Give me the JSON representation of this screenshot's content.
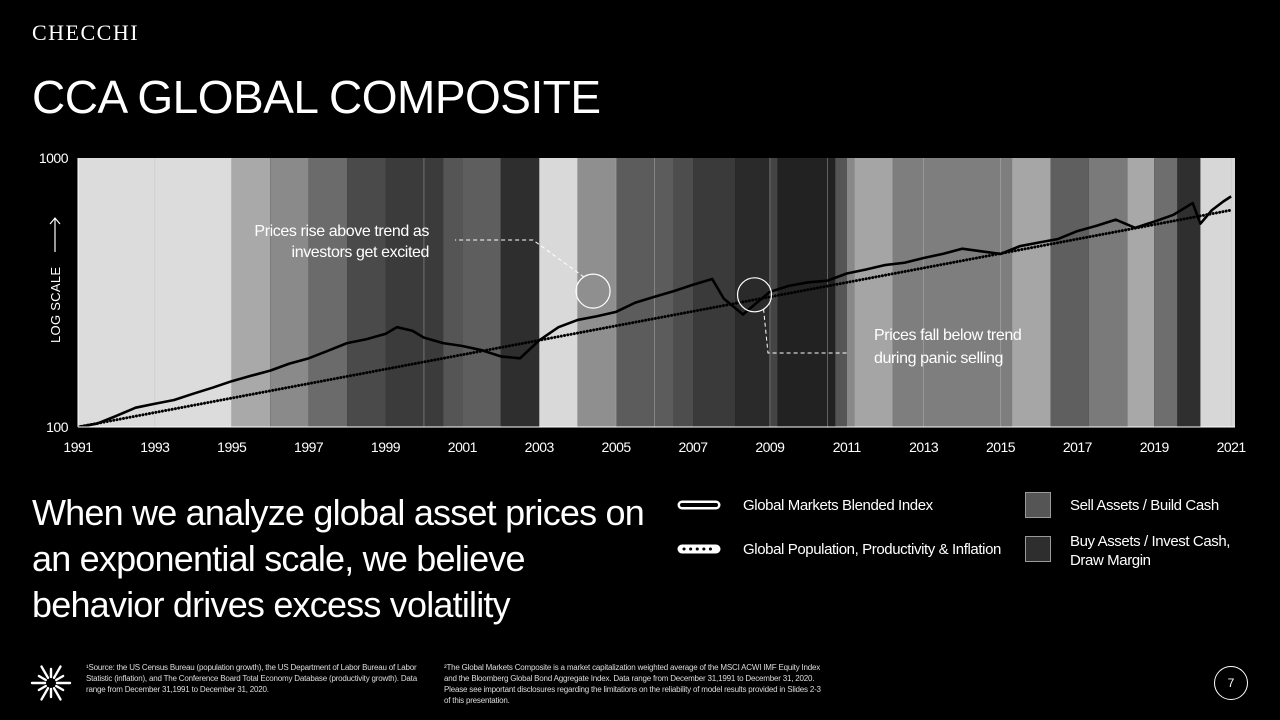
{
  "brand": "CHECCHI",
  "title": "CCA GLOBAL COMPOSITE",
  "tagline": "When we analyze global asset prices on an exponential scale, we believe behavior drives excess volatility",
  "legend": {
    "line_index": "Global Markets Blended Index",
    "line_trend": "Global Population, Productivity & Inflation",
    "sell": "Sell Assets / Build Cash",
    "buy": "Buy Assets / Invest Cash, Draw Margin"
  },
  "footnote1": "¹Source: the US Census Bureau (population growth), the US Department of Labor Bureau of Labor Statistic (inflation), and The Conference Board Total Economy Database (productivity growth). Data range from December 31,1991 to December 31, 2020.",
  "footnote2": "²The Global Markets Composite is a market capitalization weighted average of the MSCI ACWI IMF Equity Index and the Bloomberg Global Bond Aggregate Index. Data range from December 31,1991 to December 31, 2020. Please see important disclosures regarding the limitations on the reliability of model results provided in Slides 2-3 of this presentation.",
  "page_number": "7",
  "icons": {
    "logo": "sunburst-logo-icon",
    "arrow": "arrow-right-icon"
  },
  "colors": {
    "background": "#000000",
    "text": "#ffffff",
    "sell_swatch": "#555555",
    "buy_swatch": "#2e2e2e"
  },
  "chart_data": {
    "type": "line",
    "scale": "log",
    "ylim": [
      100,
      1000
    ],
    "xlim": [
      1991,
      2021.1
    ],
    "ylabel": "LOG SCALE",
    "y_ticks": [
      "100",
      "1000"
    ],
    "x_ticks": [
      "1991",
      "1993",
      "1995",
      "1997",
      "1999",
      "2001",
      "2003",
      "2005",
      "2007",
      "2009",
      "2011",
      "2013",
      "2015",
      "2017",
      "2019",
      "2021"
    ],
    "annotations": [
      {
        "text": "Prices rise above trend as investors get excited",
        "x": 2004.4,
        "y": 320
      },
      {
        "text": "Prices fall below trend during panic selling",
        "x": 2008.6,
        "y": 310
      }
    ],
    "series": [
      {
        "x": [
          1991.0,
          1991.5,
          1992.0,
          1992.5,
          1993.0,
          1993.5,
          1994.0,
          1994.5,
          1995.0,
          1995.5,
          1996.0,
          1996.5,
          1997.0,
          1997.5,
          1998.0,
          1998.5,
          1999.0,
          1999.3,
          1999.7,
          2000.0,
          2000.5,
          2001.0,
          2001.5,
          2002.0,
          2002.5,
          2003.0,
          2003.5,
          2004.0,
          2004.5,
          2005.0,
          2005.5,
          2006.0,
          2006.5,
          2007.0,
          2007.5,
          2007.8,
          2008.3,
          2008.6,
          2009.0,
          2009.5,
          2010.0,
          2010.5,
          2011.0,
          2011.5,
          2012.0,
          2012.5,
          2013.0,
          2013.5,
          2014.0,
          2014.5,
          2015.0,
          2015.5,
          2016.0,
          2016.5,
          2017.0,
          2017.5,
          2018.0,
          2018.5,
          2019.0,
          2019.5,
          2020.0,
          2020.2,
          2020.5,
          2020.8,
          2021.0
        ],
        "values": [
          100,
          103,
          110,
          118,
          122,
          126,
          133,
          140,
          148,
          155,
          162,
          172,
          180,
          192,
          205,
          212,
          222,
          235,
          228,
          215,
          205,
          200,
          193,
          183,
          180,
          210,
          235,
          250,
          258,
          268,
          290,
          305,
          320,
          338,
          355,
          300,
          262,
          285,
          318,
          335,
          345,
          350,
          372,
          385,
          400,
          408,
          425,
          440,
          460,
          450,
          440,
          470,
          485,
          500,
          535,
          560,
          590,
          550,
          580,
          615,
          680,
          570,
          640,
          690,
          720
        ]
      },
      {
        "x": [
          1991,
          2021
        ],
        "values": [
          100,
          640
        ]
      }
    ]
  }
}
